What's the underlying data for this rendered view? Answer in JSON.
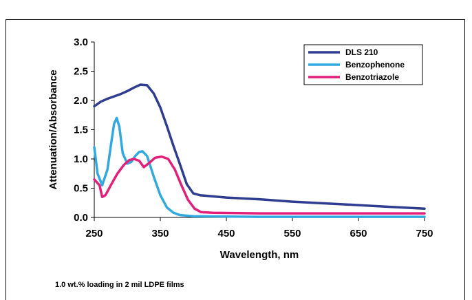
{
  "chart_data": {
    "type": "line",
    "xlabel": "Wavelength, nm",
    "ylabel": "Attenuation/Absorbance",
    "xlim": [
      250,
      750
    ],
    "ylim": [
      0,
      3.0
    ],
    "x_ticks": [
      "250",
      "350",
      "450",
      "550",
      "650",
      "750"
    ],
    "y_ticks": [
      "0.0",
      "0.5",
      "1.0",
      "1.5",
      "2.0",
      "2.5",
      "3.0"
    ],
    "legend_position": "top-right",
    "grid": false,
    "series": [
      {
        "name": "DLS 210",
        "color": "#2e3d8f",
        "points": [
          [
            250,
            1.9
          ],
          [
            260,
            1.98
          ],
          [
            270,
            2.03
          ],
          [
            280,
            2.07
          ],
          [
            290,
            2.11
          ],
          [
            300,
            2.16
          ],
          [
            310,
            2.22
          ],
          [
            320,
            2.27
          ],
          [
            330,
            2.26
          ],
          [
            340,
            2.12
          ],
          [
            350,
            1.88
          ],
          [
            360,
            1.56
          ],
          [
            370,
            1.22
          ],
          [
            380,
            0.9
          ],
          [
            390,
            0.57
          ],
          [
            400,
            0.41
          ],
          [
            410,
            0.38
          ],
          [
            450,
            0.34
          ],
          [
            500,
            0.31
          ],
          [
            550,
            0.27
          ],
          [
            600,
            0.24
          ],
          [
            650,
            0.21
          ],
          [
            700,
            0.18
          ],
          [
            750,
            0.15
          ]
        ]
      },
      {
        "name": "Benzophenone",
        "color": "#31a9df",
        "points": [
          [
            250,
            1.2
          ],
          [
            255,
            0.75
          ],
          [
            262,
            0.55
          ],
          [
            270,
            0.82
          ],
          [
            276,
            1.3
          ],
          [
            280,
            1.6
          ],
          [
            284,
            1.7
          ],
          [
            288,
            1.55
          ],
          [
            293,
            1.1
          ],
          [
            300,
            0.92
          ],
          [
            306,
            0.95
          ],
          [
            312,
            1.05
          ],
          [
            318,
            1.12
          ],
          [
            323,
            1.13
          ],
          [
            330,
            1.05
          ],
          [
            340,
            0.7
          ],
          [
            350,
            0.38
          ],
          [
            360,
            0.17
          ],
          [
            370,
            0.08
          ],
          [
            380,
            0.04
          ],
          [
            400,
            0.02
          ],
          [
            500,
            0.01
          ],
          [
            750,
            0.01
          ]
        ]
      },
      {
        "name": "Benzotriazole",
        "color": "#e2207a",
        "points": [
          [
            250,
            0.65
          ],
          [
            258,
            0.55
          ],
          [
            262,
            0.35
          ],
          [
            267,
            0.38
          ],
          [
            275,
            0.55
          ],
          [
            285,
            0.75
          ],
          [
            295,
            0.9
          ],
          [
            303,
            0.98
          ],
          [
            310,
            1.0
          ],
          [
            318,
            0.97
          ],
          [
            325,
            0.86
          ],
          [
            333,
            0.93
          ],
          [
            342,
            1.02
          ],
          [
            352,
            1.04
          ],
          [
            362,
            1.0
          ],
          [
            372,
            0.82
          ],
          [
            382,
            0.55
          ],
          [
            392,
            0.3
          ],
          [
            402,
            0.15
          ],
          [
            412,
            0.09
          ],
          [
            430,
            0.08
          ],
          [
            500,
            0.07
          ],
          [
            600,
            0.07
          ],
          [
            750,
            0.07
          ]
        ]
      }
    ]
  },
  "footnote": "1.0 wt.% loading in 2 mil LDPE films"
}
